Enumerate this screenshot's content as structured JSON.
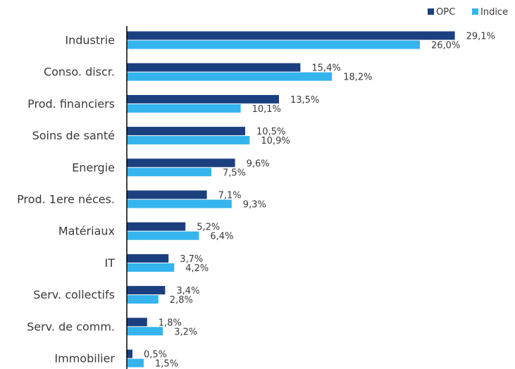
{
  "chart_data": {
    "type": "bar",
    "orientation": "horizontal",
    "categories": [
      "Industrie",
      "Conso. discr.",
      "Prod. financiers",
      "Soins de santé",
      "Energie",
      "Prod. 1ere néces.",
      "Matériaux",
      "IT",
      "Serv. collectifs",
      "Serv. de comm.",
      "Immobilier"
    ],
    "series": [
      {
        "name": "OPC",
        "color": "#1c3f7f",
        "values": [
          29.1,
          15.4,
          13.5,
          10.5,
          9.6,
          7.1,
          5.2,
          3.7,
          3.4,
          1.8,
          0.5
        ],
        "labels": [
          "29,1%",
          "15,4%",
          "13,5%",
          "10,5%",
          "9,6%",
          "7,1%",
          "5,2%",
          "3,7%",
          "3,4%",
          "1,8%",
          "0,5%"
        ]
      },
      {
        "name": "Indice",
        "color": "#35b4ee",
        "values": [
          26.0,
          18.2,
          10.1,
          10.9,
          7.5,
          9.3,
          6.4,
          4.2,
          2.8,
          3.2,
          1.5
        ],
        "labels": [
          "26,0%",
          "18,2%",
          "10,1%",
          "10,9%",
          "7,5%",
          "9,3%",
          "6,4%",
          "4,2%",
          "2,8%",
          "3,2%",
          "1,5%"
        ]
      }
    ],
    "xlim": [
      0,
      30
    ],
    "legend": "top-right",
    "grid": false
  }
}
